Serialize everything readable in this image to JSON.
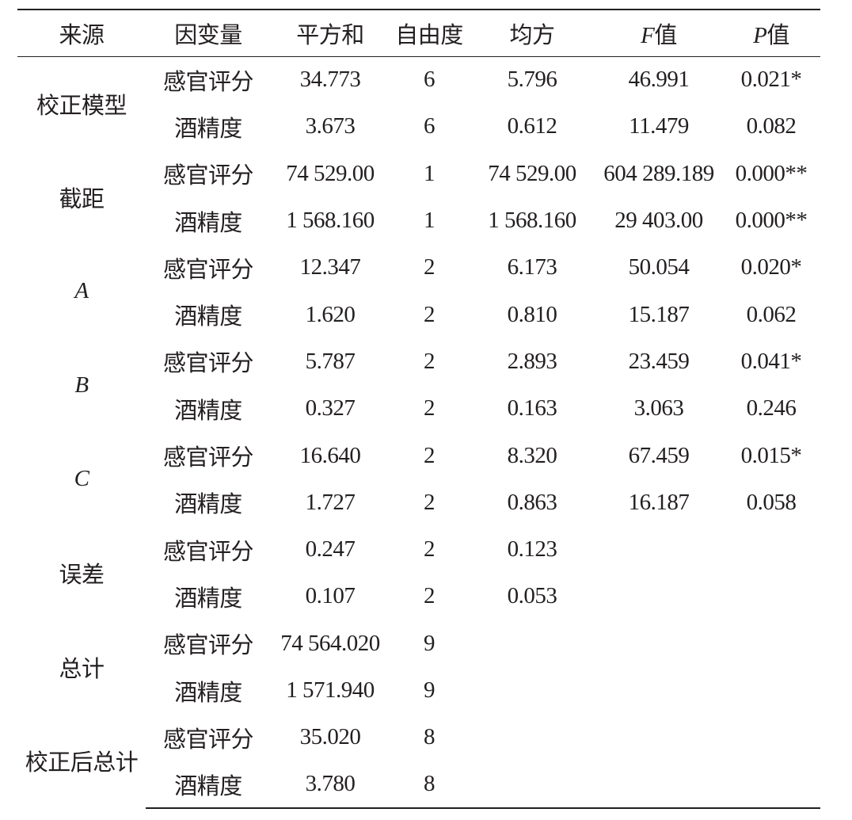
{
  "headers": [
    "来源",
    "因变量",
    "平方和",
    "自由度",
    "均方",
    "F值",
    "P值"
  ],
  "groups": [
    {
      "source": "校正模型",
      "italic": false,
      "rows": [
        [
          "感官评分",
          "34.773",
          "6",
          "5.796",
          "46.991",
          "0.021*"
        ],
        [
          "酒精度",
          "3.673",
          "6",
          "0.612",
          "11.479",
          "0.082"
        ]
      ]
    },
    {
      "source": "截距",
      "italic": false,
      "rows": [
        [
          "感官评分",
          "74 529.00",
          "1",
          "74 529.00",
          "604 289.189",
          "0.000**"
        ],
        [
          "酒精度",
          "1 568.160",
          "1",
          "1 568.160",
          "29 403.00",
          "0.000**"
        ]
      ]
    },
    {
      "source": "A",
      "italic": true,
      "rows": [
        [
          "感官评分",
          "12.347",
          "2",
          "6.173",
          "50.054",
          "0.020*"
        ],
        [
          "酒精度",
          "1.620",
          "2",
          "0.810",
          "15.187",
          "0.062"
        ]
      ]
    },
    {
      "source": "B",
      "italic": true,
      "rows": [
        [
          "感官评分",
          "5.787",
          "2",
          "2.893",
          "23.459",
          "0.041*"
        ],
        [
          "酒精度",
          "0.327",
          "2",
          "0.163",
          "3.063",
          "0.246"
        ]
      ]
    },
    {
      "source": "C",
      "italic": true,
      "rows": [
        [
          "感官评分",
          "16.640",
          "2",
          "8.320",
          "67.459",
          "0.015*"
        ],
        [
          "酒精度",
          "1.727",
          "2",
          "0.863",
          "16.187",
          "0.058"
        ]
      ]
    },
    {
      "source": "误差",
      "italic": false,
      "rows": [
        [
          "感官评分",
          "0.247",
          "2",
          "0.123",
          "",
          ""
        ],
        [
          "酒精度",
          "0.107",
          "2",
          "0.053",
          "",
          ""
        ]
      ]
    },
    {
      "source": "总计",
      "italic": false,
      "rows": [
        [
          "感官评分",
          "74 564.020",
          "9",
          "",
          "",
          ""
        ],
        [
          "酒精度",
          "1 571.940",
          "9",
          "",
          "",
          ""
        ]
      ]
    },
    {
      "source": "校正后总计",
      "italic": false,
      "rows": [
        [
          "感官评分",
          "35.020",
          "8",
          "",
          "",
          ""
        ],
        [
          "酒精度",
          "3.780",
          "8",
          "",
          "",
          ""
        ]
      ]
    }
  ]
}
